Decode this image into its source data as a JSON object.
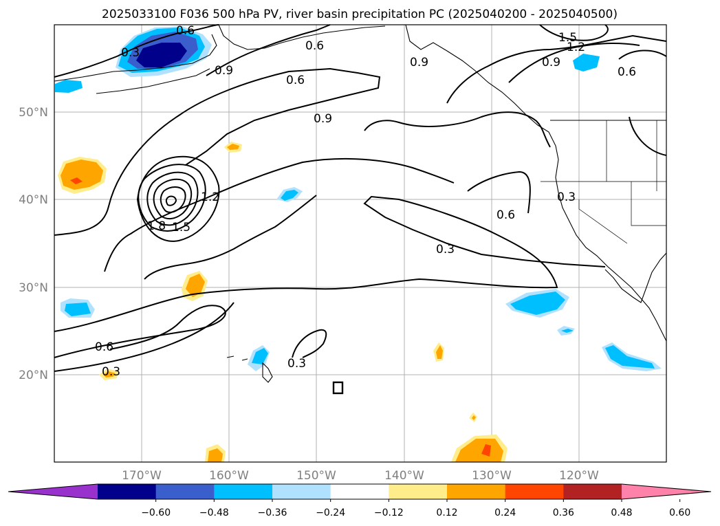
{
  "title": "2025033100 F036 500 hPa PV, river basin precipitation PC (2025040200 - 2025040500)",
  "map": {
    "projection": "PlateCarree",
    "lon_range": [
      -180,
      -110
    ],
    "lat_range": [
      10,
      60
    ],
    "lon_ticks": [
      {
        "value": -170,
        "label": "170°W"
      },
      {
        "value": -160,
        "label": "160°W"
      },
      {
        "value": -150,
        "label": "150°W"
      },
      {
        "value": -140,
        "label": "140°W"
      },
      {
        "value": -130,
        "label": "130°W"
      },
      {
        "value": -120,
        "label": "120°W"
      }
    ],
    "lat_ticks": [
      {
        "value": 20,
        "label": "20°N"
      },
      {
        "value": 30,
        "label": "30°N"
      },
      {
        "value": 40,
        "label": "40°N"
      },
      {
        "value": 50,
        "label": "50°N"
      }
    ],
    "gridlines": true,
    "contour_labels": [
      "0.3",
      "0.6",
      "0.9",
      "1.2",
      "1.5",
      "1.8",
      "0.6",
      "0.9",
      "0.6",
      "0.3",
      "0.3",
      "0.6",
      "0.3",
      "0.6",
      "0.9",
      "1.2",
      "1.5",
      "0.9",
      "0.6",
      "0.3"
    ]
  },
  "colorbar": {
    "ticks": [
      "−0.60",
      "−0.48",
      "−0.36",
      "−0.24",
      "−0.12",
      "0.12",
      "0.24",
      "0.36",
      "0.48",
      "0.60"
    ],
    "colors": [
      "#9932cc",
      "#00008b",
      "#3a5fcd",
      "#00bfff",
      "#b0e2ff",
      "#ffffff",
      "#ffec8b",
      "#ffa500",
      "#ff4500",
      "#b22222",
      "#ff82ab"
    ],
    "extend": "both"
  }
}
